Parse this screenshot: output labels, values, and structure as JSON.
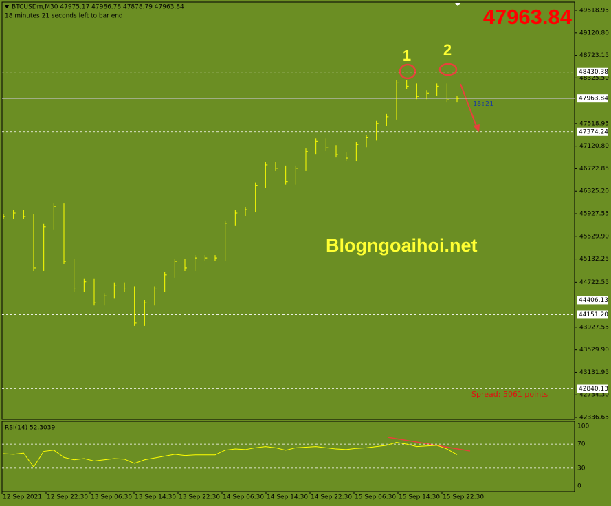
{
  "header": {
    "symbol_line": "BTCUSDm,M30  47975.17 47986.78 47878.79 47963.84",
    "timer": "18 minutes 21 seconds left to bar end"
  },
  "big_price": "47963.84",
  "annotations": {
    "peak_1": "1",
    "peak_2": "2",
    "watermark": "Blogngoaihoi.net",
    "countdown": "18:21",
    "spread": "Spread: 5061 points"
  },
  "price_axis": {
    "range": [
      42336.65,
      49518.95
    ],
    "ticks": [
      49518.95,
      {
        "value": 49120.8,
        "label": "49120.80"
      },
      48723.15,
      {
        "value": 48325.5,
        "label": "48325.50"
      },
      47518.95,
      {
        "value": 47120.8,
        "label": "47120.80"
      },
      46722.85,
      {
        "value": 46325.2,
        "label": "46325.20"
      },
      45927.55,
      {
        "value": 45529.9,
        "label": "45529.90"
      },
      45132.25,
      44722.55,
      43927.55,
      {
        "value": 43529.9,
        "label": "43529.90"
      },
      43131.95,
      {
        "value": 42734.3,
        "label": "42734.30"
      },
      42336.65
    ],
    "levels": [
      48430.38,
      47374.24,
      44406.13,
      {
        "value": 44151.2,
        "label": "44151.20"
      },
      42840.13
    ],
    "current": 47963.84
  },
  "price_closes": [
    45880,
    45940,
    45880,
    44970,
    45700,
    46060,
    45090,
    44600,
    44730,
    44360,
    44480,
    44670,
    44600,
    44000,
    44360,
    44600,
    44850,
    45090,
    44970,
    45150,
    45150,
    45150,
    45760,
    45940,
    46000,
    46430,
    46790,
    46730,
    46490,
    46730,
    47030,
    47210,
    47090,
    46970,
    46910,
    47150,
    47270,
    47520,
    47640,
    48240,
    48180,
    48000,
    48060,
    48180,
    47940,
    47963.84
  ],
  "rsi": {
    "title": "RSI(14) 52.3039",
    "range": [
      0,
      100
    ],
    "ticks": [
      100,
      70,
      30,
      0
    ],
    "values": [
      54,
      53,
      55,
      32,
      58,
      60,
      48,
      44,
      46,
      42,
      44,
      46,
      45,
      38,
      44,
      47,
      50,
      53,
      51,
      52,
      52,
      52,
      60,
      62,
      61,
      64,
      66,
      64,
      60,
      64,
      65,
      66,
      64,
      62,
      61,
      63,
      64,
      66,
      68,
      73,
      70,
      66,
      67,
      68,
      62,
      52.3039
    ]
  },
  "time_axis": [
    "12 Sep 2021",
    "12 Sep 22:30",
    "13 Sep 06:30",
    "13 Sep 14:30",
    "13 Sep 22:30",
    "14 Sep 06:30",
    "14 Sep 14:30",
    "14 Sep 22:30",
    "15 Sep 06:30",
    "15 Sep 14:30",
    "15 Sep 22:30"
  ]
}
